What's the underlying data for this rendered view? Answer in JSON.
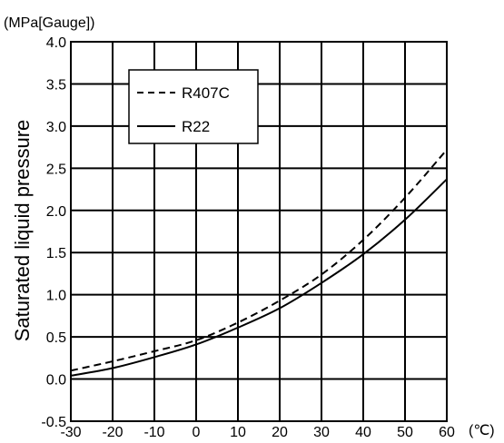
{
  "chart_data": {
    "type": "line",
    "title": "",
    "xlabel": "",
    "ylabel": "Saturated liquid pressure",
    "y_unit": "(MPa[Gauge])",
    "x_unit": "(℃)",
    "xlim": [
      -30,
      60
    ],
    "ylim": [
      -0.5,
      4.0
    ],
    "x_ticks": [
      "-30",
      "-20",
      "-10",
      "0",
      "10",
      "20",
      "30",
      "40",
      "50",
      "60"
    ],
    "y_ticks": [
      "-0.5",
      "0.0",
      "0.5",
      "1.0",
      "1.5",
      "2.0",
      "2.5",
      "3.0",
      "3.5",
      "4.0"
    ],
    "grid": true,
    "legend_position": "top-left",
    "x": [
      -30,
      -20,
      -10,
      0,
      10,
      20,
      30,
      40,
      50,
      60
    ],
    "series": [
      {
        "name": "R407C",
        "style": "dashed",
        "values": [
          0.1,
          0.21,
          0.33,
          0.46,
          0.67,
          0.93,
          1.24,
          1.65,
          2.15,
          2.72
        ]
      },
      {
        "name": "R22",
        "style": "solid",
        "values": [
          0.04,
          0.13,
          0.26,
          0.41,
          0.61,
          0.84,
          1.14,
          1.48,
          1.89,
          2.37
        ]
      }
    ]
  }
}
